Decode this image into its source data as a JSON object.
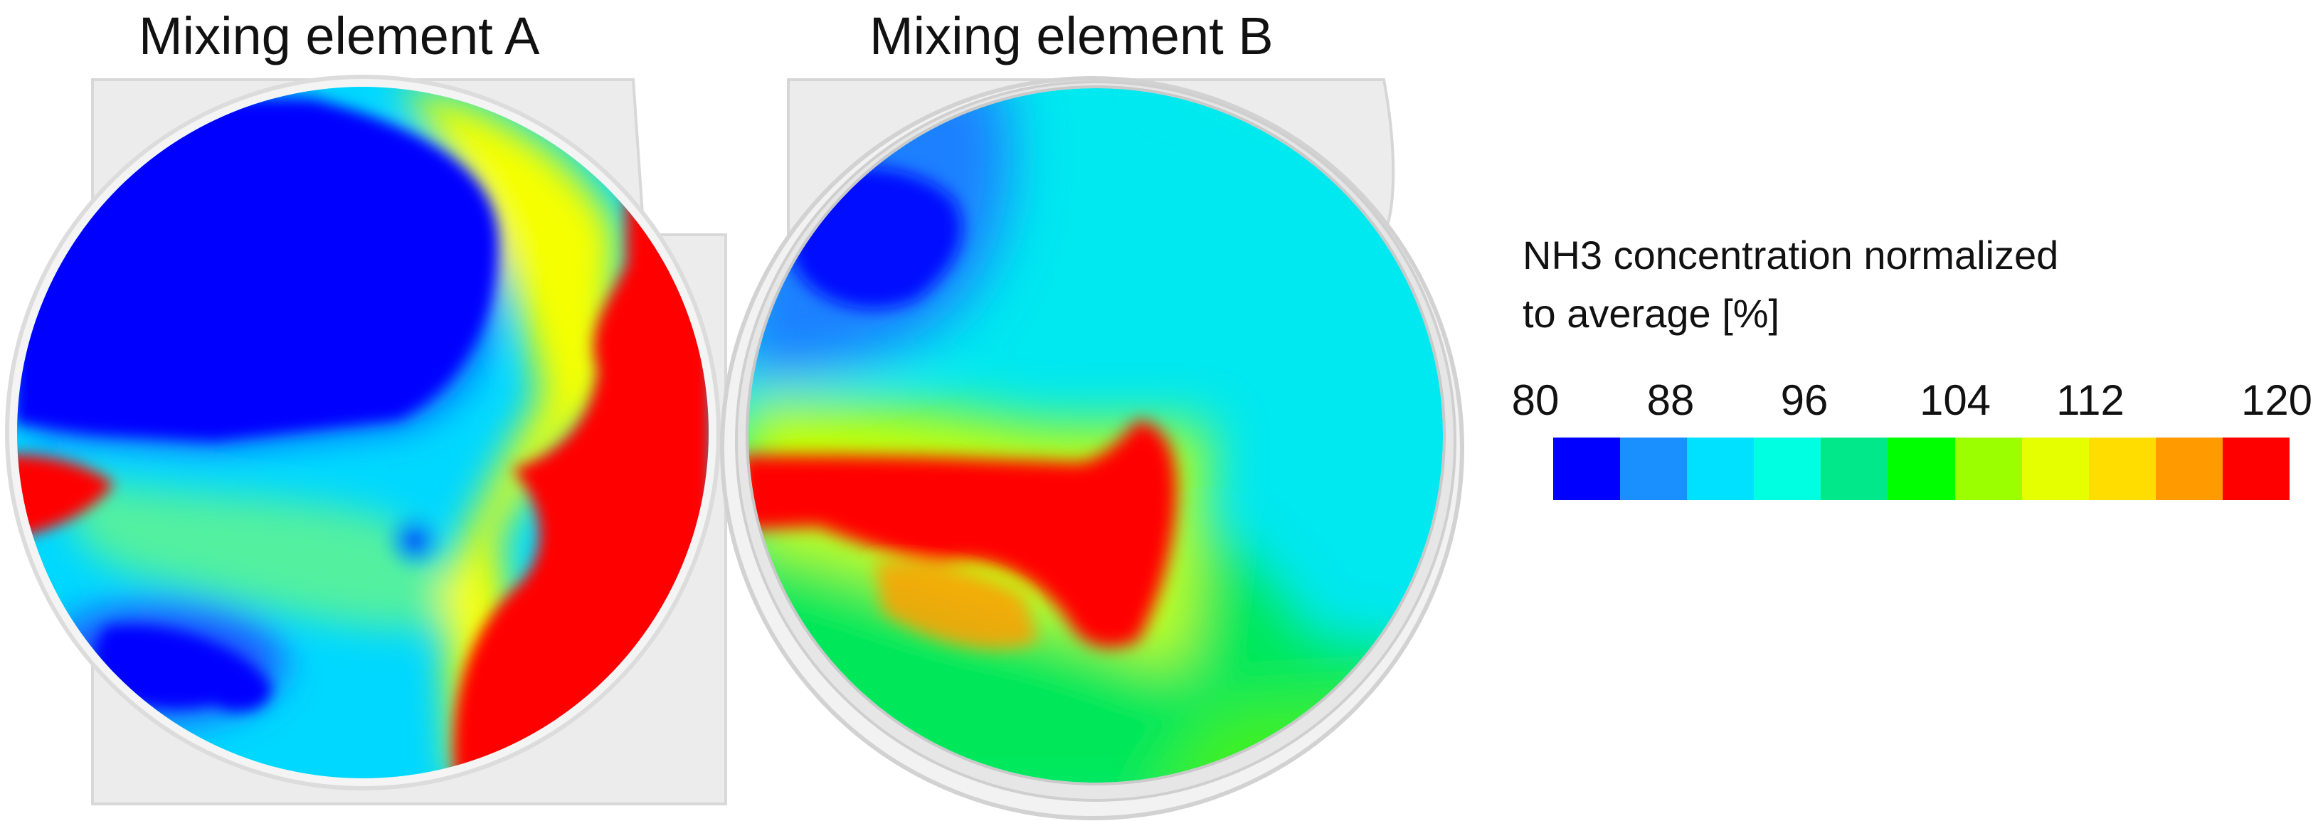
{
  "panels": {
    "a": {
      "title": "Mixing element A"
    },
    "b": {
      "title": "Mixing element B"
    }
  },
  "legend": {
    "title_line1": "NH3 concentration normalized",
    "title_line2": "to average [%]",
    "ticks": [
      "80",
      "88",
      "96",
      "104",
      "112",
      "120"
    ],
    "colors": [
      "#0000ff",
      "#1a90ff",
      "#00e1ff",
      "#00ffe0",
      "#00e88a",
      "#00ff00",
      "#9cff00",
      "#e6ff00",
      "#ffdd00",
      "#ff9a00",
      "#ff0000"
    ]
  }
}
